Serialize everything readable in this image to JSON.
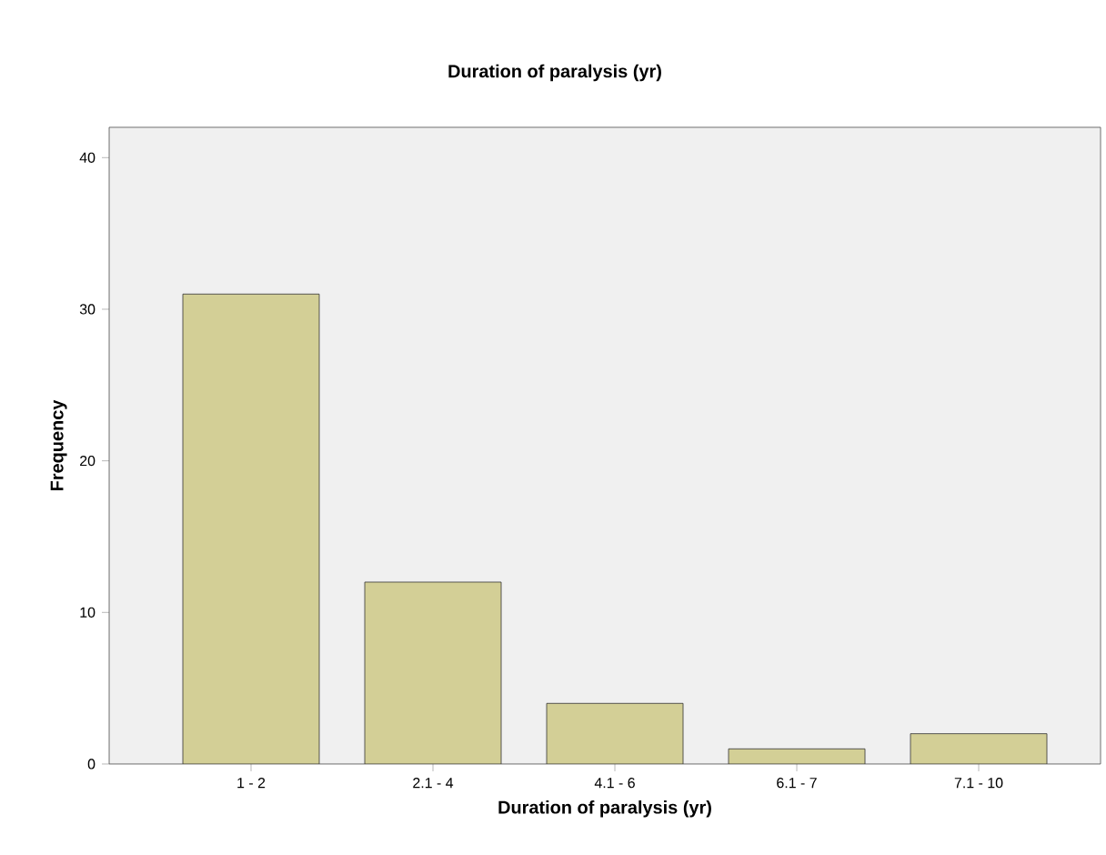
{
  "chart_data": {
    "type": "bar",
    "title": "Duration of paralysis (yr)",
    "xlabel": "Duration of paralysis (yr)",
    "ylabel": "Frequency",
    "categories": [
      "1 - 2",
      "2.1 - 4",
      "4.1  - 6",
      "6.1 - 7",
      "7.1 - 10"
    ],
    "values": [
      31,
      12,
      4,
      1,
      2
    ],
    "color": "#d3cf96",
    "ylim": [
      0,
      42
    ],
    "yticks": [
      0,
      10,
      20,
      30,
      40
    ]
  }
}
